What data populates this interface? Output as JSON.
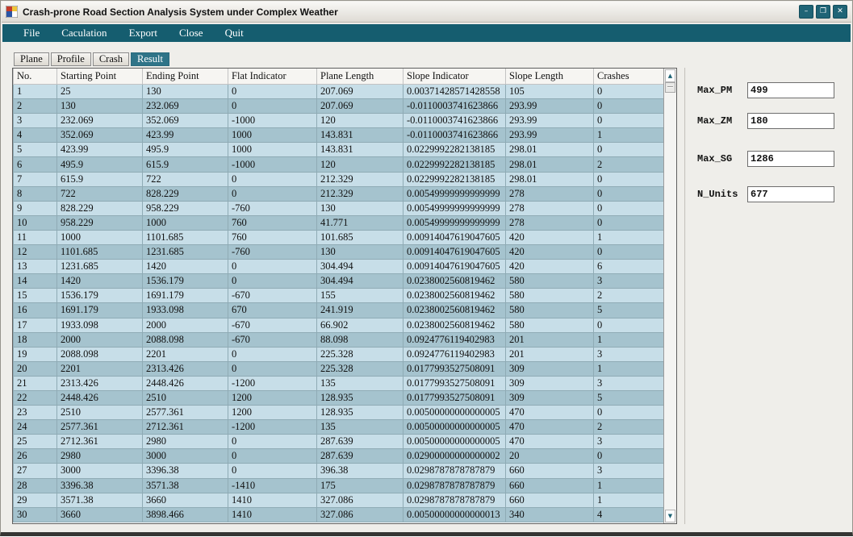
{
  "window": {
    "title": "Crash-prone Road Section Analysis System under Complex Weather",
    "controls": {
      "minimize": "–",
      "maximize": "❐",
      "close": "✕"
    }
  },
  "menu": {
    "items": [
      "File",
      "Caculation",
      "Export",
      "Close",
      "Quit"
    ]
  },
  "tabs": {
    "items": [
      {
        "label": "Plane",
        "active": false
      },
      {
        "label": "Profile",
        "active": false
      },
      {
        "label": "Crash",
        "active": false
      },
      {
        "label": "Result",
        "active": true
      }
    ]
  },
  "table": {
    "columns": [
      "No.",
      "Starting Point",
      "Ending Point",
      "Flat Indicator",
      "Plane Length",
      "Slope Indicator",
      "Slope Length",
      "Crashes"
    ],
    "rows": [
      [
        "1",
        "25",
        "130",
        "0",
        "207.069",
        "0.00371428571428558",
        "105",
        "0"
      ],
      [
        "2",
        "130",
        "232.069",
        "0",
        "207.069",
        "-0.0110003741623866",
        "293.99",
        "0"
      ],
      [
        "3",
        "232.069",
        "352.069",
        "-1000",
        "120",
        "-0.0110003741623866",
        "293.99",
        "0"
      ],
      [
        "4",
        "352.069",
        "423.99",
        "1000",
        "143.831",
        "-0.0110003741623866",
        "293.99",
        "1"
      ],
      [
        "5",
        "423.99",
        "495.9",
        "1000",
        "143.831",
        "0.0229992282138185",
        "298.01",
        "0"
      ],
      [
        "6",
        "495.9",
        "615.9",
        "-1000",
        "120",
        "0.0229992282138185",
        "298.01",
        "2"
      ],
      [
        "7",
        "615.9",
        "722",
        "0",
        "212.329",
        "0.0229992282138185",
        "298.01",
        "0"
      ],
      [
        "8",
        "722",
        "828.229",
        "0",
        "212.329",
        "0.00549999999999999",
        "278",
        "0"
      ],
      [
        "9",
        "828.229",
        "958.229",
        "-760",
        "130",
        "0.00549999999999999",
        "278",
        "0"
      ],
      [
        "10",
        "958.229",
        "1000",
        "760",
        "41.771",
        "0.00549999999999999",
        "278",
        "0"
      ],
      [
        "11",
        "1000",
        "1101.685",
        "760",
        "101.685",
        "0.00914047619047605",
        "420",
        "1"
      ],
      [
        "12",
        "1101.685",
        "1231.685",
        "-760",
        "130",
        "0.00914047619047605",
        "420",
        "0"
      ],
      [
        "13",
        "1231.685",
        "1420",
        "0",
        "304.494",
        "0.00914047619047605",
        "420",
        "6"
      ],
      [
        "14",
        "1420",
        "1536.179",
        "0",
        "304.494",
        "0.0238002560819462",
        "580",
        "3"
      ],
      [
        "15",
        "1536.179",
        "1691.179",
        "-670",
        "155",
        "0.0238002560819462",
        "580",
        "2"
      ],
      [
        "16",
        "1691.179",
        "1933.098",
        "670",
        "241.919",
        "0.0238002560819462",
        "580",
        "5"
      ],
      [
        "17",
        "1933.098",
        "2000",
        "-670",
        "66.902",
        "0.0238002560819462",
        "580",
        "0"
      ],
      [
        "18",
        "2000",
        "2088.098",
        "-670",
        "88.098",
        "0.0924776119402983",
        "201",
        "1"
      ],
      [
        "19",
        "2088.098",
        "2201",
        "0",
        "225.328",
        "0.0924776119402983",
        "201",
        "3"
      ],
      [
        "20",
        "2201",
        "2313.426",
        "0",
        "225.328",
        "0.0177993527508091",
        "309",
        "1"
      ],
      [
        "21",
        "2313.426",
        "2448.426",
        "-1200",
        "135",
        "0.0177993527508091",
        "309",
        "3"
      ],
      [
        "22",
        "2448.426",
        "2510",
        "1200",
        "128.935",
        "0.0177993527508091",
        "309",
        "5"
      ],
      [
        "23",
        "2510",
        "2577.361",
        "1200",
        "128.935",
        "0.00500000000000005",
        "470",
        "0"
      ],
      [
        "24",
        "2577.361",
        "2712.361",
        "-1200",
        "135",
        "0.00500000000000005",
        "470",
        "2"
      ],
      [
        "25",
        "2712.361",
        "2980",
        "0",
        "287.639",
        "0.00500000000000005",
        "470",
        "3"
      ],
      [
        "26",
        "2980",
        "3000",
        "0",
        "287.639",
        "0.02900000000000002",
        "20",
        "0"
      ],
      [
        "27",
        "3000",
        "3396.38",
        "0",
        "396.38",
        "0.0298787878787879",
        "660",
        "3"
      ],
      [
        "28",
        "3396.38",
        "3571.38",
        "-1410",
        "175",
        "0.0298787878787879",
        "660",
        "1"
      ],
      [
        "29",
        "3571.38",
        "3660",
        "1410",
        "327.086",
        "0.0298787878787879",
        "660",
        "1"
      ],
      [
        "30",
        "3660",
        "3898.466",
        "1410",
        "327.086",
        "0.00500000000000013",
        "340",
        "4"
      ]
    ]
  },
  "fields": [
    {
      "label": "Max_PM",
      "value": "499"
    },
    {
      "label": "Max_ZM",
      "value": "180"
    },
    {
      "label": "Max_SG",
      "value": "1286"
    },
    {
      "label": "N_Units",
      "value": "677"
    }
  ],
  "scrollbar": {
    "up": "▲",
    "down": "▼"
  },
  "colors": {
    "menubar_teal": "#155d6f",
    "tab_active_teal": "#2f7488",
    "row_odd": "#c7dee8",
    "row_even": "#a5c3ce",
    "window_button": "#1f6476"
  }
}
